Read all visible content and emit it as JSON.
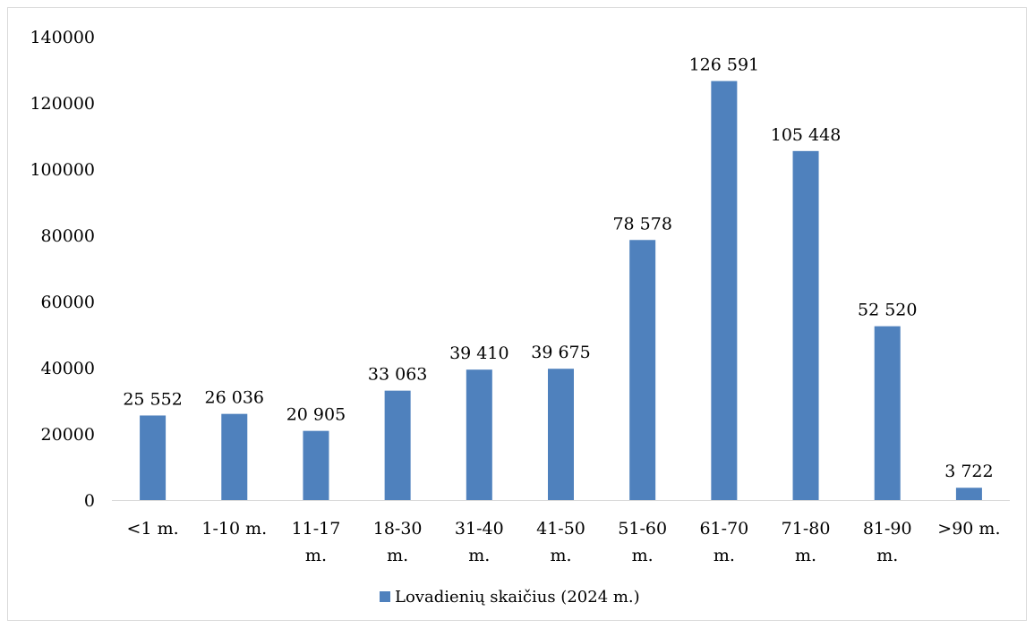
{
  "chart_data": {
    "type": "bar",
    "categories": [
      [
        "<1 m."
      ],
      [
        "1-10 m."
      ],
      [
        "11-17",
        "m."
      ],
      [
        "18-30",
        "m."
      ],
      [
        "31-40",
        "m."
      ],
      [
        "41-50",
        "m."
      ],
      [
        "51-60",
        "m."
      ],
      [
        "61-70",
        "m."
      ],
      [
        "71-80",
        "m."
      ],
      [
        "81-90",
        "m."
      ],
      [
        ">90 m."
      ]
    ],
    "series": [
      {
        "name": "Lovadienių skaičius (2024 m.)",
        "color": "#4f81bd",
        "values": [
          25552,
          26036,
          20905,
          33063,
          39410,
          39675,
          78578,
          126591,
          105448,
          52520,
          3722
        ],
        "data_labels": [
          "25 552",
          "26 036",
          "20 905",
          "33 063",
          "39 410",
          "39 675",
          "78 578",
          "126 591",
          "105 448",
          "52 520",
          "3 722"
        ]
      }
    ],
    "y_ticks": [
      "0",
      "20000",
      "40000",
      "60000",
      "80000",
      "100000",
      "120000",
      "140000"
    ],
    "ylim": [
      0,
      140000
    ],
    "grid": false,
    "legend_position": "bottom"
  }
}
